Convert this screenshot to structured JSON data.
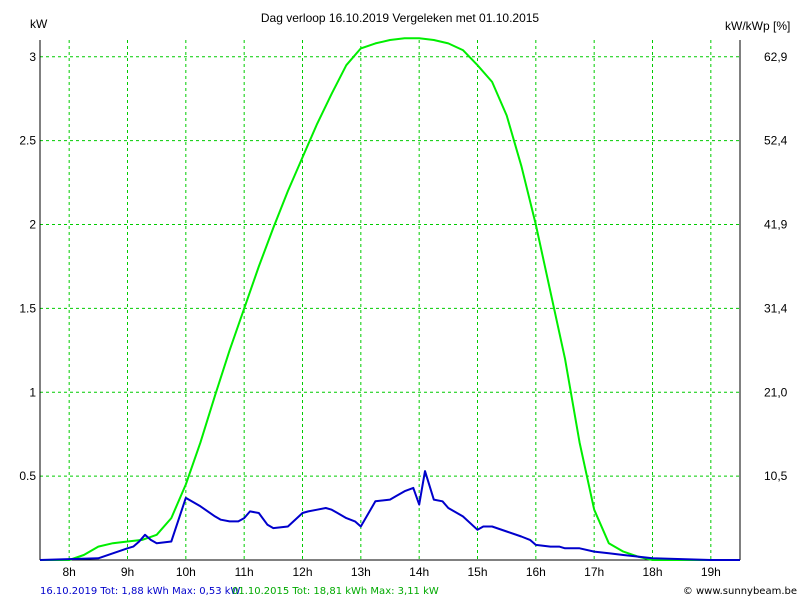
{
  "header": {
    "title": "Dag  verloop 16.10.2019   Vergeleken met 01.10.2015",
    "left_unit": "kW",
    "right_unit": "kW/kWp [%]"
  },
  "footer": {
    "series1_summary": "16.10.2019 Tot: 1,88 kWh Max: 0,53 kW",
    "series2_summary": "01.10.2015 Tot: 18,81 kWh Max: 3,11 kW",
    "credit": "© www.sunnybeam.be"
  },
  "colors": {
    "series_2019": "#0000cc",
    "series_2015": "#00ee00",
    "grid": "#00cc00"
  },
  "chart_data": {
    "type": "line",
    "title": "Dag  verloop 16.10.2019   Vergeleken met 01.10.2015",
    "ylabel": "kW",
    "y2label": "kW/kWp [%]",
    "xlim": [
      7.5,
      19.5
    ],
    "ylim": [
      0,
      3.1
    ],
    "grid": true,
    "x_ticks": [
      8,
      9,
      10,
      11,
      12,
      13,
      14,
      15,
      16,
      17,
      18,
      19
    ],
    "x_tick_labels": [
      "8h",
      "9h",
      "10h",
      "11h",
      "12h",
      "13h",
      "14h",
      "15h",
      "16h",
      "17h",
      "18h",
      "19h"
    ],
    "y_ticks": [
      0.5,
      1,
      1.5,
      2,
      2.5,
      3
    ],
    "y_tick_labels": [
      "0.5",
      "1",
      "1.5",
      "2",
      "2.5",
      "3"
    ],
    "y2_tick_labels": [
      "10,5",
      "21,0",
      "31,4",
      "41,9",
      "52,4",
      "62,9"
    ],
    "series": [
      {
        "name": "16.10.2019",
        "color": "#0000cc",
        "x": [
          7.5,
          8.5,
          8.75,
          9.0,
          9.1,
          9.2,
          9.3,
          9.4,
          9.5,
          9.75,
          10.0,
          10.1,
          10.25,
          10.5,
          10.6,
          10.75,
          10.9,
          11.0,
          11.1,
          11.25,
          11.4,
          11.5,
          11.75,
          12.0,
          12.1,
          12.25,
          12.4,
          12.5,
          12.6,
          12.75,
          12.9,
          13.0,
          13.25,
          13.5,
          13.6,
          13.75,
          13.9,
          14.0,
          14.1,
          14.25,
          14.4,
          14.5,
          14.75,
          15.0,
          15.1,
          15.25,
          15.5,
          15.75,
          15.9,
          16.0,
          16.25,
          16.4,
          16.5,
          16.75,
          17.0,
          17.25,
          17.5,
          17.75,
          18.0,
          19.0,
          19.5
        ],
        "values": [
          0.0,
          0.01,
          0.04,
          0.07,
          0.08,
          0.11,
          0.15,
          0.12,
          0.1,
          0.11,
          0.37,
          0.35,
          0.32,
          0.26,
          0.24,
          0.23,
          0.23,
          0.25,
          0.29,
          0.28,
          0.21,
          0.19,
          0.2,
          0.28,
          0.29,
          0.3,
          0.31,
          0.3,
          0.28,
          0.25,
          0.23,
          0.2,
          0.35,
          0.36,
          0.38,
          0.41,
          0.43,
          0.33,
          0.53,
          0.36,
          0.35,
          0.31,
          0.26,
          0.18,
          0.2,
          0.2,
          0.17,
          0.14,
          0.12,
          0.09,
          0.08,
          0.08,
          0.07,
          0.07,
          0.05,
          0.04,
          0.03,
          0.02,
          0.01,
          0.0,
          0.0
        ]
      },
      {
        "name": "01.10.2015",
        "color": "#00ee00",
        "x": [
          7.5,
          8.0,
          8.25,
          8.5,
          8.75,
          9.0,
          9.25,
          9.5,
          9.75,
          10.0,
          10.25,
          10.5,
          10.75,
          11.0,
          11.25,
          11.5,
          11.75,
          12.0,
          12.25,
          12.5,
          12.75,
          13.0,
          13.25,
          13.5,
          13.75,
          14.0,
          14.25,
          14.5,
          14.75,
          15.0,
          15.25,
          15.5,
          15.75,
          16.0,
          16.25,
          16.5,
          16.75,
          17.0,
          17.25,
          17.5,
          17.75,
          18.0,
          18.25,
          18.5,
          18.75,
          19.0,
          19.25,
          19.5
        ],
        "values": [
          0.0,
          0.0,
          0.03,
          0.08,
          0.1,
          0.11,
          0.12,
          0.15,
          0.25,
          0.45,
          0.7,
          0.98,
          1.25,
          1.5,
          1.75,
          1.98,
          2.2,
          2.4,
          2.6,
          2.78,
          2.95,
          3.05,
          3.08,
          3.1,
          3.11,
          3.11,
          3.1,
          3.08,
          3.04,
          2.95,
          2.85,
          2.65,
          2.35,
          2.0,
          1.6,
          1.2,
          0.7,
          0.3,
          0.1,
          0.05,
          0.02,
          0.0,
          0.0,
          0.0,
          0.0,
          0.0,
          0.0,
          0.0
        ]
      }
    ]
  }
}
